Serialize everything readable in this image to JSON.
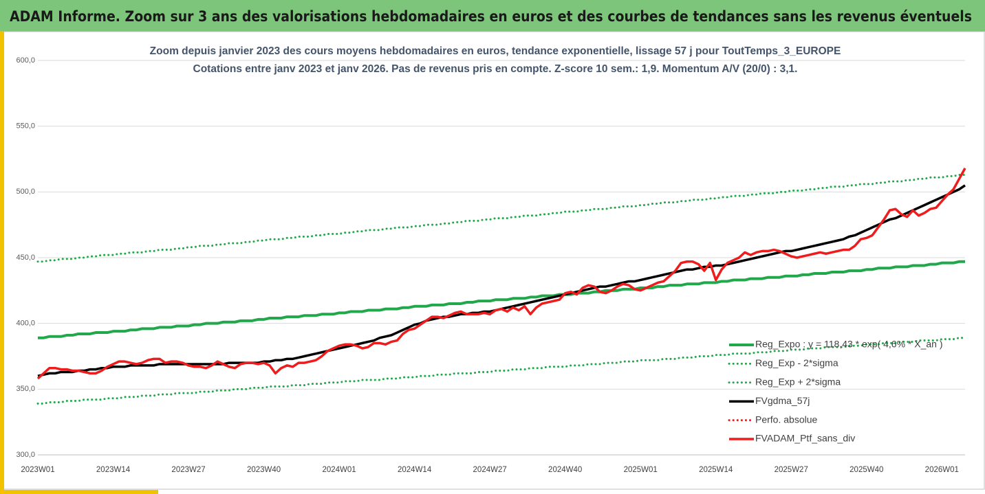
{
  "header": {
    "title": "ADAM Informe. Zoom sur 3 ans des valorisations hebdomadaires en euros et des courbes de tendances sans les revenus éventuels"
  },
  "chart_data": {
    "type": "line",
    "title": "Zoom depuis janvier 2023 des cours moyens hebdomadaires  en euros, tendance exponentielle, lissage 57 j pour ToutTemps_3_EUROPE",
    "subtitle": "Cotations entre janv 2023 et janv 2026. Pas de revenus pris en compte. Z-score 10 sem.: 1,9. Momentum A/V (20/0) : 3,1.",
    "categories": [
      "2023W01",
      null,
      null,
      null,
      null,
      null,
      null,
      null,
      null,
      null,
      null,
      null,
      null,
      "2023W14",
      null,
      null,
      null,
      null,
      null,
      null,
      null,
      null,
      null,
      null,
      null,
      null,
      "2023W27",
      null,
      null,
      null,
      null,
      null,
      null,
      null,
      null,
      null,
      null,
      null,
      null,
      "2023W40",
      null,
      null,
      null,
      null,
      null,
      null,
      null,
      null,
      null,
      null,
      null,
      null,
      "2024W01",
      null,
      null,
      null,
      null,
      null,
      null,
      null,
      null,
      null,
      null,
      null,
      null,
      "2024W14",
      null,
      null,
      null,
      null,
      null,
      null,
      null,
      null,
      null,
      null,
      null,
      null,
      "2024W27",
      null,
      null,
      null,
      null,
      null,
      null,
      null,
      null,
      null,
      null,
      null,
      null,
      "2024W40",
      null,
      null,
      null,
      null,
      null,
      null,
      null,
      null,
      null,
      null,
      null,
      null,
      "2025W01",
      null,
      null,
      null,
      null,
      null,
      null,
      null,
      null,
      null,
      null,
      null,
      null,
      "2025W14",
      null,
      null,
      null,
      null,
      null,
      null,
      null,
      null,
      null,
      null,
      null,
      null,
      "2025W27",
      null,
      null,
      null,
      null,
      null,
      null,
      null,
      null,
      null,
      null,
      null,
      null,
      "2025W40",
      null,
      null,
      null,
      null,
      null,
      null,
      null,
      null,
      null,
      null,
      null,
      null,
      "2026W01",
      null,
      null,
      null,
      null
    ],
    "ylim": [
      300,
      600
    ],
    "yticks": [
      {
        "value": 300,
        "label": "300,0"
      },
      {
        "value": 350,
        "label": "350,0"
      },
      {
        "value": 400,
        "label": "400,0"
      },
      {
        "value": 450,
        "label": "450,0"
      },
      {
        "value": 500,
        "label": "500,0"
      },
      {
        "value": 550,
        "label": "550,0"
      },
      {
        "value": 600,
        "label": "600,0"
      }
    ],
    "grid": true,
    "legend": "lower right",
    "series": [
      {
        "name": "Reg_Expo : y = 118,43 * exp( 4,6% * X_an )",
        "color": "#21a84a",
        "dash": "solid",
        "values": [
          389,
          389,
          390,
          390,
          390,
          391,
          391,
          392,
          392,
          392,
          393,
          393,
          393,
          394,
          394,
          394,
          395,
          395,
          396,
          396,
          396,
          397,
          397,
          397,
          398,
          398,
          398,
          399,
          399,
          400,
          400,
          400,
          401,
          401,
          401,
          402,
          402,
          402,
          403,
          403,
          404,
          404,
          404,
          405,
          405,
          405,
          406,
          406,
          406,
          407,
          407,
          407,
          408,
          408,
          409,
          409,
          409,
          410,
          410,
          410,
          411,
          411,
          411,
          412,
          412,
          413,
          413,
          413,
          414,
          414,
          414,
          415,
          415,
          415,
          416,
          416,
          417,
          417,
          417,
          418,
          418,
          418,
          419,
          419,
          419,
          420,
          420,
          421,
          421,
          421,
          422,
          422,
          422,
          423,
          423,
          423,
          424,
          424,
          425,
          425,
          425,
          426,
          426,
          426,
          427,
          427,
          427,
          428,
          428,
          429,
          429,
          429,
          430,
          430,
          430,
          431,
          431,
          431,
          432,
          432,
          433,
          433,
          433,
          434,
          434,
          434,
          435,
          435,
          435,
          436,
          436,
          436,
          437,
          437,
          438,
          438,
          438,
          439,
          439,
          439,
          440,
          440,
          440,
          441,
          441,
          442,
          442,
          442,
          443,
          443,
          443,
          444,
          444,
          444,
          445,
          445,
          446,
          446,
          446,
          447,
          447
        ]
      },
      {
        "name": "Reg_Exp - 2*sigma",
        "color": "#21a84a",
        "dash": "dotted",
        "values": [
          339,
          339,
          340,
          340,
          340,
          341,
          341,
          341,
          342,
          342,
          342,
          342,
          343,
          343,
          343,
          344,
          344,
          344,
          345,
          345,
          345,
          346,
          346,
          346,
          347,
          347,
          347,
          347,
          348,
          348,
          348,
          349,
          349,
          349,
          350,
          350,
          350,
          351,
          351,
          351,
          352,
          352,
          352,
          352,
          353,
          353,
          353,
          354,
          354,
          354,
          355,
          355,
          355,
          356,
          356,
          356,
          357,
          357,
          357,
          357,
          358,
          358,
          358,
          359,
          359,
          359,
          360,
          360,
          360,
          361,
          361,
          361,
          362,
          362,
          362,
          362,
          363,
          363,
          363,
          364,
          364,
          364,
          365,
          365,
          365,
          366,
          366,
          366,
          367,
          367,
          367,
          367,
          368,
          368,
          368,
          369,
          369,
          369,
          370,
          370,
          370,
          371,
          371,
          371,
          372,
          372,
          372,
          372,
          373,
          373,
          373,
          374,
          374,
          374,
          375,
          375,
          375,
          376,
          376,
          376,
          377,
          377,
          377,
          377,
          378,
          378,
          378,
          379,
          379,
          379,
          380,
          380,
          380,
          381,
          381,
          381,
          382,
          382,
          382,
          382,
          383,
          383,
          383,
          384,
          384,
          384,
          385,
          385,
          385,
          386,
          386,
          386,
          387,
          387,
          387,
          387,
          388,
          388,
          388,
          389,
          389
        ]
      },
      {
        "name": "Reg_Exp + 2*sigma",
        "color": "#21a84a",
        "dash": "dotted",
        "values": [
          447,
          447,
          448,
          448,
          449,
          449,
          449,
          450,
          450,
          451,
          451,
          452,
          452,
          452,
          453,
          453,
          454,
          454,
          454,
          455,
          455,
          456,
          456,
          456,
          457,
          457,
          458,
          458,
          459,
          459,
          459,
          460,
          460,
          461,
          461,
          461,
          462,
          462,
          463,
          463,
          464,
          464,
          464,
          465,
          465,
          466,
          466,
          466,
          467,
          467,
          468,
          468,
          468,
          469,
          469,
          470,
          470,
          471,
          471,
          471,
          472,
          472,
          473,
          473,
          473,
          474,
          474,
          475,
          475,
          475,
          476,
          476,
          477,
          477,
          478,
          478,
          478,
          479,
          479,
          480,
          480,
          480,
          481,
          481,
          482,
          482,
          482,
          483,
          483,
          484,
          484,
          485,
          485,
          485,
          486,
          486,
          487,
          487,
          487,
          488,
          488,
          489,
          489,
          489,
          490,
          490,
          491,
          491,
          492,
          492,
          492,
          493,
          493,
          494,
          494,
          494,
          495,
          495,
          496,
          496,
          497,
          497,
          497,
          498,
          498,
          499,
          499,
          499,
          500,
          500,
          501,
          501,
          501,
          502,
          502,
          503,
          503,
          504,
          504,
          504,
          505,
          505,
          506,
          506,
          506,
          507,
          507,
          508,
          508,
          508,
          509,
          509,
          510,
          510,
          511,
          511,
          511,
          512,
          512,
          513,
          513
        ]
      },
      {
        "name": "FVgdma_57j",
        "color": "#000000",
        "dash": "solid",
        "values": [
          360,
          361,
          362,
          362,
          363,
          363,
          363,
          364,
          364,
          365,
          365,
          366,
          366,
          367,
          367,
          367,
          368,
          368,
          368,
          368,
          368,
          369,
          369,
          369,
          369,
          369,
          369,
          369,
          369,
          369,
          369,
          369,
          369,
          370,
          370,
          370,
          370,
          370,
          370,
          371,
          371,
          372,
          372,
          373,
          373,
          374,
          375,
          376,
          377,
          378,
          379,
          380,
          381,
          382,
          383,
          384,
          385,
          386,
          387,
          389,
          390,
          391,
          393,
          395,
          397,
          399,
          400,
          402,
          403,
          404,
          405,
          405,
          406,
          407,
          407,
          408,
          408,
          409,
          409,
          410,
          411,
          412,
          413,
          414,
          415,
          416,
          417,
          418,
          419,
          420,
          421,
          422,
          423,
          424,
          425,
          426,
          427,
          428,
          428,
          429,
          430,
          431,
          432,
          432,
          433,
          434,
          435,
          436,
          437,
          438,
          439,
          440,
          441,
          441,
          442,
          443,
          443,
          444,
          444,
          445,
          446,
          447,
          448,
          449,
          450,
          451,
          452,
          453,
          454,
          455,
          455,
          456,
          457,
          458,
          459,
          460,
          461,
          462,
          463,
          464,
          466,
          467,
          469,
          471,
          473,
          475,
          477,
          479,
          480,
          482,
          484,
          486,
          488,
          490,
          492,
          494,
          496,
          498,
          500,
          502,
          505
        ]
      },
      {
        "name": "Perfo. absolue",
        "color": "#ee1c1c",
        "dash": "dotted",
        "values": [
          null,
          null,
          null,
          null,
          null,
          null,
          null,
          null,
          null,
          null,
          null,
          null,
          null,
          null,
          null,
          null,
          null,
          null,
          null,
          null,
          null,
          null,
          null,
          null,
          null,
          null,
          null,
          null,
          null,
          null,
          null,
          null,
          null,
          null,
          null,
          null,
          null,
          null,
          null,
          null,
          null,
          null,
          null,
          null,
          null,
          null,
          null,
          null,
          null,
          null,
          null,
          null,
          null,
          null,
          null,
          null,
          null,
          null,
          null,
          null,
          null,
          null,
          null,
          null,
          null,
          null,
          null,
          null,
          null,
          null,
          null,
          null,
          null,
          null,
          null,
          null,
          null,
          null,
          null,
          null,
          null,
          null,
          null,
          null,
          null,
          null,
          null,
          null,
          null,
          null,
          null,
          null,
          null,
          null,
          null,
          null,
          null,
          null,
          null,
          null,
          null,
          null,
          null,
          null,
          null,
          null,
          null,
          null,
          null,
          null,
          null,
          null,
          null,
          null,
          null,
          null,
          null,
          null,
          null,
          null,
          null,
          null,
          null,
          null,
          null,
          null,
          null,
          null,
          null,
          null,
          null,
          null,
          null,
          null,
          null,
          null,
          null,
          null,
          null,
          null,
          null,
          null,
          null,
          null,
          null,
          null,
          null,
          null,
          null,
          null,
          null,
          null,
          null,
          null,
          null,
          null,
          null,
          null,
          null,
          null,
          null
        ]
      },
      {
        "name": "FVADAM_Ptf_sans_div",
        "color": "#ee1c1c",
        "dash": "solid",
        "values": [
          358,
          362,
          366,
          366,
          365,
          365,
          364,
          364,
          363,
          362,
          362,
          364,
          367,
          369,
          371,
          371,
          370,
          369,
          370,
          372,
          373,
          373,
          370,
          371,
          371,
          370,
          368,
          367,
          367,
          366,
          368,
          371,
          369,
          367,
          366,
          369,
          370,
          370,
          369,
          370,
          368,
          362,
          366,
          368,
          367,
          370,
          370,
          371,
          372,
          375,
          379,
          381,
          383,
          384,
          384,
          383,
          381,
          382,
          385,
          385,
          384,
          386,
          387,
          392,
          395,
          396,
          399,
          402,
          405,
          405,
          404,
          406,
          408,
          409,
          407,
          407,
          407,
          408,
          407,
          410,
          411,
          409,
          412,
          410,
          413,
          407,
          412,
          415,
          416,
          417,
          418,
          423,
          424,
          422,
          427,
          429,
          428,
          424,
          423,
          425,
          428,
          430,
          429,
          426,
          425,
          427,
          429,
          431,
          432,
          436,
          440,
          446,
          447,
          447,
          445,
          440,
          446,
          433,
          441,
          446,
          448,
          450,
          454,
          452,
          454,
          455,
          455,
          456,
          455,
          453,
          451,
          450,
          451,
          452,
          453,
          454,
          453,
          454,
          455,
          456,
          456,
          459,
          464,
          465,
          467,
          473,
          479,
          486,
          487,
          483,
          481,
          486,
          482,
          484,
          487,
          488,
          493,
          498,
          502,
          510,
          518
        ]
      }
    ]
  }
}
